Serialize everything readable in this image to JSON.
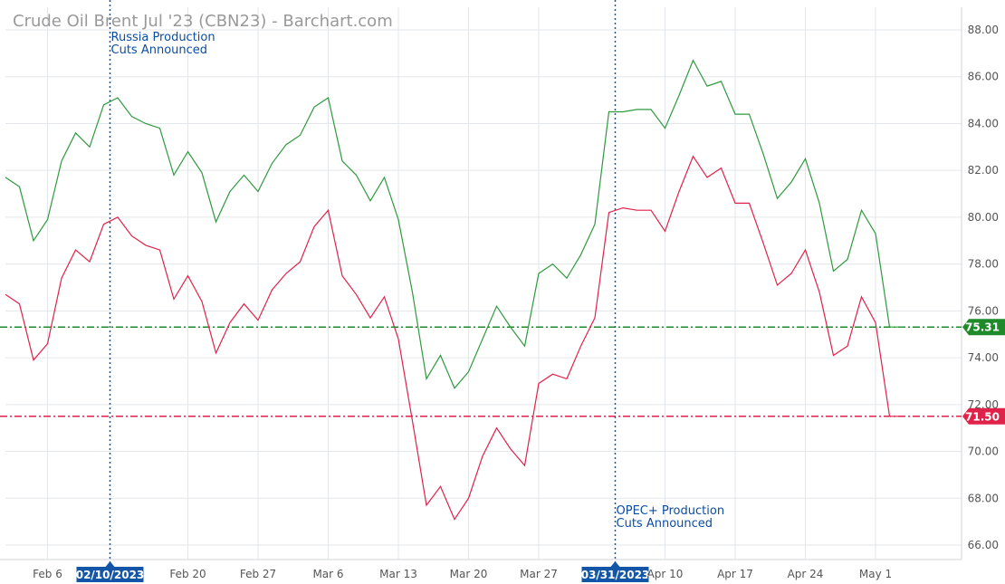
{
  "chart_data": {
    "type": "line",
    "title": "Crude Oil Brent Jul '23 (CBN23) - Barchart.com",
    "xlabel": "",
    "ylabel": "",
    "ylim": [
      65,
      89
    ],
    "grid": true,
    "y_ticks": [
      "66.00",
      "68.00",
      "70.00",
      "72.00",
      "74.00",
      "76.00",
      "78.00",
      "80.00",
      "82.00",
      "84.00",
      "86.00",
      "88.00"
    ],
    "x_ticks": [
      {
        "label": "Feb 6",
        "idx": 3
      },
      {
        "label": "Feb 20",
        "idx": 13
      },
      {
        "label": "Feb 27",
        "idx": 18
      },
      {
        "label": "Mar 6",
        "idx": 23
      },
      {
        "label": "Mar 13",
        "idx": 28
      },
      {
        "label": "Mar 20",
        "idx": 33
      },
      {
        "label": "Mar 27",
        "idx": 38
      },
      {
        "label": "Apr 10",
        "idx": 47
      },
      {
        "label": "Apr 17",
        "idx": 52
      },
      {
        "label": "Apr 24",
        "idx": 57
      },
      {
        "label": "May 1",
        "idx": 62
      }
    ],
    "series": [
      {
        "color": "#2e9a3e",
        "values": [
          81.7,
          81.3,
          79.0,
          79.9,
          82.4,
          83.6,
          83.0,
          84.8,
          85.1,
          84.3,
          84.0,
          83.8,
          81.8,
          82.8,
          81.9,
          79.8,
          81.1,
          81.8,
          81.1,
          82.3,
          83.1,
          83.5,
          84.7,
          85.1,
          82.4,
          81.8,
          80.7,
          81.7,
          79.9,
          76.8,
          73.1,
          74.1,
          72.7,
          73.4,
          74.8,
          76.2,
          75.3,
          74.5,
          77.6,
          78.0,
          77.4,
          78.4,
          79.7,
          84.5,
          84.5,
          84.6,
          84.6,
          83.8,
          85.2,
          86.7,
          85.6,
          85.8,
          84.4,
          84.4,
          82.7,
          80.8,
          81.5,
          82.5,
          80.6,
          77.7,
          78.2,
          80.3,
          79.3,
          75.31,
          75.31
        ]
      },
      {
        "color": "#e0224a",
        "values": [
          76.7,
          76.3,
          73.9,
          74.6,
          77.4,
          78.6,
          78.1,
          79.7,
          80.0,
          79.2,
          78.8,
          78.6,
          76.5,
          77.5,
          76.4,
          74.2,
          75.5,
          76.3,
          75.6,
          76.9,
          77.6,
          78.1,
          79.6,
          80.3,
          77.5,
          76.7,
          75.7,
          76.6,
          74.8,
          71.3,
          67.7,
          68.5,
          67.1,
          68.0,
          69.8,
          71.0,
          70.1,
          69.4,
          72.9,
          73.3,
          73.1,
          74.5,
          75.7,
          80.2,
          80.4,
          80.3,
          80.3,
          79.4,
          81.1,
          82.6,
          81.7,
          82.1,
          80.6,
          80.6,
          78.9,
          77.1,
          77.6,
          78.6,
          76.8,
          74.1,
          74.5,
          76.6,
          75.5,
          71.5,
          71.5
        ]
      }
    ],
    "horizontal_levels": [
      {
        "value": 75.31,
        "label": "75.31",
        "color": "#1f8a2a"
      },
      {
        "value": 71.5,
        "label": "71.50",
        "color": "#e0224a"
      }
    ],
    "events": [
      {
        "idx": 7,
        "date": "02/10/2023",
        "text": [
          "Russia Production",
          "Cuts Announced"
        ],
        "text_pos": "top"
      },
      {
        "idx": 43,
        "date": "03/31/2023",
        "text": [
          "OPEC+ Production",
          "Cuts Announced"
        ],
        "text_pos": "bottom"
      }
    ]
  }
}
